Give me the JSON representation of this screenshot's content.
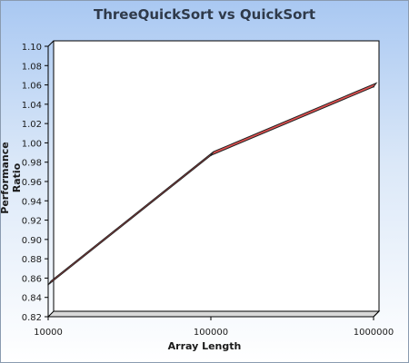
{
  "chart_data": {
    "type": "line",
    "title": "ThreeQuickSort vs QuickSort",
    "xlabel": "Array Length",
    "ylabel": "Performance Ratio",
    "x_scale": "log",
    "x": [
      10000,
      100000,
      1000000
    ],
    "x_tick_labels": [
      "10000",
      "100000",
      "1000000"
    ],
    "y_ticks": [
      "0.82",
      "0.84",
      "0.86",
      "0.88",
      "0.90",
      "0.92",
      "0.94",
      "0.96",
      "0.98",
      "1.00",
      "1.02",
      "1.04",
      "1.06",
      "1.08",
      "1.10"
    ],
    "ylim": [
      0.82,
      1.1
    ],
    "series": [
      {
        "values": [
          0.853,
          0.987,
          1.058
        ],
        "color": "#e05050"
      }
    ],
    "grid": false,
    "legend": "none"
  }
}
